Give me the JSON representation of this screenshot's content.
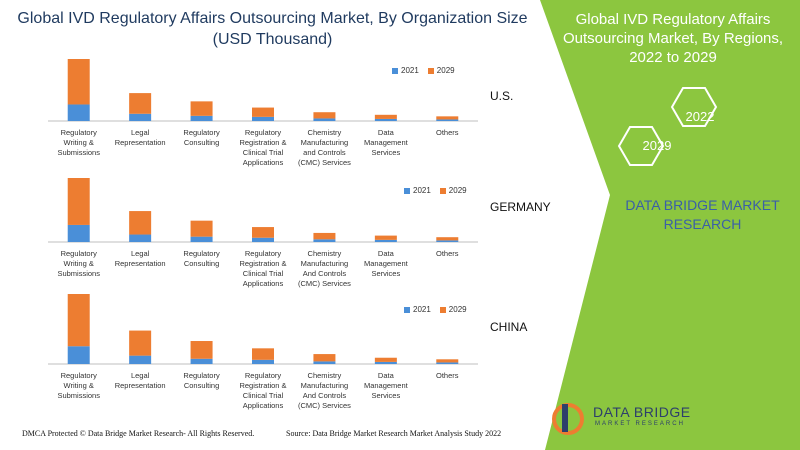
{
  "page": {
    "title": "Global IVD Regulatory Affairs Outsourcing Market, By Organization Size (USD Thousand)"
  },
  "side_panel": {
    "title": "Global IVD Regulatory Affairs Outsourcing Market, By Regions, 2022 to 2029",
    "year_a": "2022",
    "year_b": "2029",
    "brand": "DATA BRIDGE MARKET RESEARCH"
  },
  "legend": {
    "series_a": "2021",
    "series_b": "2029"
  },
  "colors": {
    "series_a": "#4a8fd8",
    "series_b": "#ed7d31",
    "panel": "#8cc63f",
    "axis": "#bfbfbf"
  },
  "footer": {
    "dmca": "DMCA Protected © Data Bridge Market Research- All Rights Reserved.",
    "source": "Source: Data Bridge Market Research Market Analysis Study 2022"
  },
  "logo": {
    "name": "DATA BRIDGE",
    "tagline": "MARKET RESEARCH"
  },
  "chart_data": [
    {
      "type": "bar",
      "region": "U.S.",
      "categories": [
        "Regulatory Writing & Submissions",
        "Legal Representation",
        "Regulatory Consulting",
        "Regulatory Registration & Clinical Trial Applications",
        "Chemistry Manufacturing and Controls (CMC) Services",
        "Data Management Services",
        "Others"
      ],
      "category_lines": [
        [
          "Regulatory",
          "Writing &",
          "Submissions"
        ],
        [
          "Legal",
          "Representation"
        ],
        [
          "Regulatory",
          "Consulting"
        ],
        [
          "Regulatory",
          "Registration &",
          "Clinical Trial",
          "Applications"
        ],
        [
          "Chemistry",
          "Manufacturing",
          "and Controls",
          "(CMC) Services"
        ],
        [
          "Data",
          "Management",
          "Services"
        ],
        [
          "Others"
        ]
      ],
      "series": [
        {
          "name": "2021",
          "values": [
            16,
            7,
            5,
            4,
            2.5,
            2,
            1.5
          ]
        },
        {
          "name": "2029",
          "values": [
            44,
            20,
            14,
            9,
            6,
            4,
            3
          ]
        }
      ],
      "stacked": true
    },
    {
      "type": "bar",
      "region": "GERMANY",
      "categories": [
        "Regulatory Writing & Submissions",
        "Legal Representation",
        "Regulatory Consulting",
        "Regulatory Registration & Clinical Trial Applications",
        "Chemistry Manufacturing And Controls (CMC) Services",
        "Data Management Services",
        "Others"
      ],
      "category_lines": [
        [
          "Regulatory",
          "Writing &",
          "Submissions"
        ],
        [
          "Legal",
          "Representation"
        ],
        [
          "Regulatory",
          "Consulting"
        ],
        [
          "Regulatory",
          "Registration &",
          "Clinical Trial",
          "Applications"
        ],
        [
          "Chemistry",
          "Manufacturing",
          "And Controls",
          "(CMC) Services"
        ],
        [
          "Data",
          "Management",
          "Services"
        ],
        [
          "Others"
        ]
      ],
      "series": [
        {
          "name": "2021",
          "values": [
            16,
            7,
            5,
            4,
            2.5,
            2,
            1.5
          ]
        },
        {
          "name": "2029",
          "values": [
            44,
            22,
            15,
            10,
            6,
            4,
            3
          ]
        }
      ],
      "stacked": true
    },
    {
      "type": "bar",
      "region": "CHINA",
      "categories": [
        "Regulatory Writing & Submissions",
        "Legal Representation",
        "Regulatory Consulting",
        "Regulatory Registration & Clinical Trial Applications",
        "Chemistry Manufacturing And Controls (CMC) Services",
        "Data Management Services",
        "Others"
      ],
      "category_lines": [
        [
          "Regulatory",
          "Writing &",
          "Submissions"
        ],
        [
          "Legal",
          "Representation"
        ],
        [
          "Regulatory",
          "Consulting"
        ],
        [
          "Regulatory",
          "Registration &",
          "Clinical Trial",
          "Applications"
        ],
        [
          "Chemistry",
          "Manufacturing",
          "And Controls",
          "(CMC) Services"
        ],
        [
          "Data",
          "Management",
          "Services"
        ],
        [
          "Others"
        ]
      ],
      "series": [
        {
          "name": "2021",
          "values": [
            17,
            8,
            5,
            4,
            2.5,
            2,
            1.5
          ]
        },
        {
          "name": "2029",
          "values": [
            50,
            24,
            17,
            11,
            7,
            4,
            3
          ]
        }
      ],
      "stacked": true
    }
  ]
}
